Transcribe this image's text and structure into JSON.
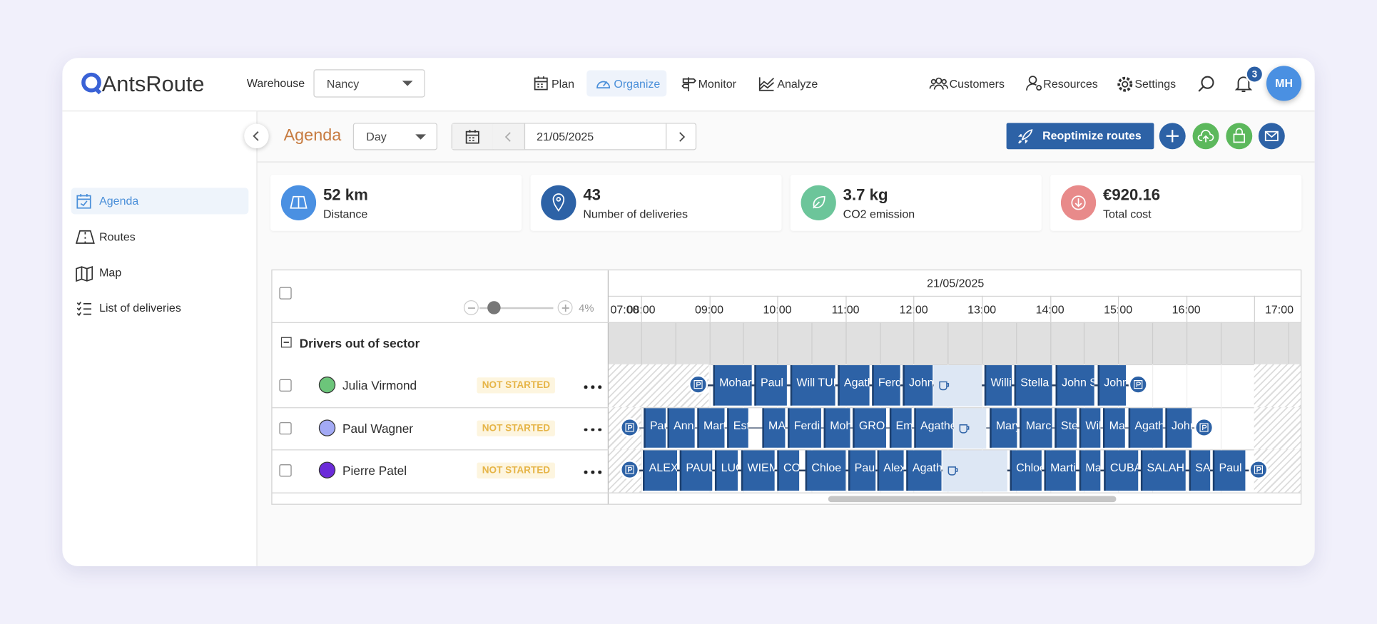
{
  "header": {
    "logo": "AntsRoute",
    "warehouse_label": "Warehouse",
    "warehouse": "Nancy",
    "nav": [
      "Plan",
      "Organize",
      "Monitor",
      "Analyze"
    ],
    "right_nav": [
      "Customers",
      "Resources",
      "Settings"
    ],
    "notifications": "3",
    "avatar": "MH"
  },
  "sidebar": {
    "items": [
      "Agenda",
      "Routes",
      "Map",
      "List of deliveries"
    ]
  },
  "toolbar": {
    "title": "Agenda",
    "view": "Day",
    "date": "21/05/2025",
    "reoptimize": "Reoptimize routes"
  },
  "stats": [
    {
      "value": "52 km",
      "label": "Distance"
    },
    {
      "value": "43",
      "label": "Number of deliveries"
    },
    {
      "value": "3.7 kg",
      "label": "CO2 emission"
    },
    {
      "value": "€920.16",
      "label": "Total cost"
    }
  ],
  "agenda": {
    "zoom": "4%",
    "date": "21/05/2025",
    "hours": [
      "07:00",
      "08:00",
      "09:00",
      "10:00",
      "11:00",
      "12:00",
      "13:00",
      "14:00",
      "15:00",
      "16:00",
      "17:00"
    ],
    "group": "Drivers out of sector",
    "drivers": [
      {
        "name": "Julia Virmond",
        "color": "#6cc57a",
        "status": "NOT STARTED",
        "stops": [
          "Mohar",
          "Paul",
          "Will TUI",
          "Agath",
          "Ferd",
          "John",
          "Willi",
          "Stella T",
          "John S",
          "John"
        ]
      },
      {
        "name": "Paul Wagner",
        "color": "#a3aaf5",
        "status": "NOT STARTED",
        "stops": [
          "Pau",
          "Anna",
          "Mart",
          "Est",
          "MA",
          "Ferdi",
          "Moh",
          "GRO",
          "Em",
          "Agathe",
          "Mary",
          "Marc",
          "Ste",
          "Wil",
          "Ma",
          "Agath",
          "John"
        ]
      },
      {
        "name": "Pierre Patel",
        "color": "#6b2bd9",
        "status": "NOT STARTED",
        "stops": [
          "ALEX",
          "PAUL",
          "LUC",
          "WIEM",
          "CO",
          "Chloe",
          "Paul",
          "Alex",
          "Agath",
          "Chloe",
          "Marti",
          "Ma",
          "CUBA",
          "SALAH",
          "SA",
          "Paul"
        ]
      }
    ]
  }
}
